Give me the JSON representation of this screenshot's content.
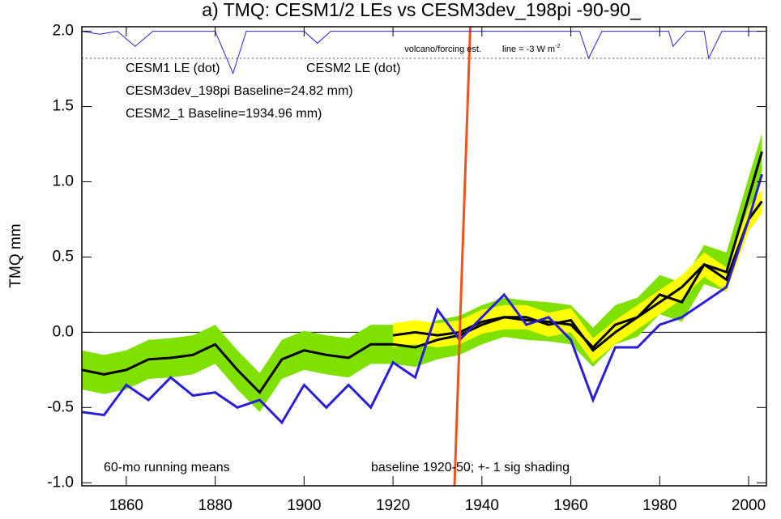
{
  "chart_data": {
    "type": "line",
    "title": "a) TMQ: CESM1/2 LEs vs CESM3dev_198pi -90-90_",
    "ylabel": "TMQ mm",
    "xlim": [
      1850,
      2004
    ],
    "ylim": [
      -1.02,
      2.03
    ],
    "xticks": [
      1860,
      1880,
      1900,
      1920,
      1940,
      1960,
      1980,
      2000
    ],
    "yticks": [
      {
        "value": -1,
        "label": "-1.0"
      },
      {
        "value": -0.5,
        "label": "-0.5"
      },
      {
        "value": 0,
        "label": "0.0"
      },
      0.5,
      {
        "value": 1,
        "label": "1.0"
      },
      1.5,
      {
        "value": 2,
        "label": "2.0"
      }
    ],
    "annotations": [
      "volcano/forcing est.",
      "line = -3 W m",
      "-2",
      "60-mo running means",
      "baseline 1920-50; +- 1 sig shading"
    ],
    "reference_line": 1.82,
    "series": [
      {
        "name": "CESM2 LE (dot)",
        "kind": "band",
        "color": "#80e000",
        "line_color": "#000000",
        "x": [
          1850,
          1855,
          1860,
          1865,
          1870,
          1875,
          1880,
          1885,
          1890,
          1895,
          1900,
          1905,
          1910,
          1915,
          1920,
          1925,
          1930,
          1935,
          1940,
          1945,
          1950,
          1955,
          1960,
          1965,
          1970,
          1975,
          1980,
          1985,
          1990,
          1995,
          2000,
          2003
        ],
        "values": [
          -0.25,
          -0.28,
          -0.25,
          -0.18,
          -0.17,
          -0.15,
          -0.08,
          -0.25,
          -0.4,
          -0.18,
          -0.12,
          -0.15,
          -0.17,
          -0.08,
          -0.08,
          -0.1,
          -0.05,
          -0.02,
          0.05,
          0.1,
          0.08,
          0.07,
          0.05,
          -0.1,
          0.05,
          0.1,
          0.25,
          0.2,
          0.45,
          0.4,
          0.9,
          1.2
        ],
        "upper": [
          -0.12,
          -0.15,
          -0.12,
          -0.05,
          -0.04,
          -0.02,
          0.05,
          -0.12,
          -0.27,
          -0.05,
          0.01,
          -0.02,
          -0.04,
          0.05,
          0.05,
          0.03,
          0.08,
          0.11,
          0.18,
          0.23,
          0.21,
          0.2,
          0.18,
          0.03,
          0.18,
          0.23,
          0.38,
          0.33,
          0.58,
          0.53,
          1.03,
          1.32
        ],
        "lower": [
          -0.38,
          -0.41,
          -0.38,
          -0.31,
          -0.3,
          -0.28,
          -0.21,
          -0.38,
          -0.53,
          -0.31,
          -0.25,
          -0.28,
          -0.3,
          -0.21,
          -0.21,
          -0.23,
          -0.18,
          -0.15,
          -0.08,
          -0.03,
          -0.05,
          -0.06,
          -0.08,
          -0.23,
          -0.08,
          -0.03,
          0.12,
          0.07,
          0.32,
          0.27,
          0.77,
          1.07
        ]
      },
      {
        "name": "CESM1 LE (dot)",
        "kind": "band",
        "color": "#ffff00",
        "line_color": "#000000",
        "x": [
          1920,
          1925,
          1930,
          1935,
          1940,
          1945,
          1950,
          1955,
          1960,
          1965,
          1970,
          1975,
          1980,
          1985,
          1990,
          1995,
          2000,
          2003
        ],
        "values": [
          -0.02,
          0.0,
          -0.02,
          0.0,
          0.07,
          0.1,
          0.1,
          0.05,
          0.08,
          -0.12,
          0.0,
          0.1,
          0.2,
          0.3,
          0.45,
          0.35,
          0.75,
          0.87
        ],
        "upper": [
          0.06,
          0.08,
          0.06,
          0.08,
          0.15,
          0.18,
          0.18,
          0.13,
          0.16,
          -0.04,
          0.08,
          0.18,
          0.28,
          0.38,
          0.53,
          0.43,
          0.83,
          0.95
        ],
        "lower": [
          -0.1,
          -0.08,
          -0.1,
          -0.08,
          -0.01,
          0.02,
          0.02,
          -0.03,
          0.0,
          -0.2,
          -0.08,
          0.02,
          0.12,
          0.22,
          0.37,
          0.27,
          0.67,
          0.79
        ]
      },
      {
        "name": "CESM2_1 Baseline=1934.96 mm)",
        "kind": "line",
        "color": "#2a1fd6",
        "x": [
          1850,
          1855,
          1860,
          1865,
          1870,
          1875,
          1880,
          1885,
          1890,
          1895,
          1900,
          1905,
          1910,
          1915,
          1920,
          1925,
          1930,
          1935,
          1940,
          1945,
          1950,
          1955,
          1960,
          1965,
          1970,
          1975,
          1980,
          1985,
          1990,
          1995,
          2000,
          2003
        ],
        "values": [
          -0.53,
          -0.55,
          -0.35,
          -0.45,
          -0.3,
          -0.42,
          -0.4,
          -0.5,
          -0.45,
          -0.6,
          -0.35,
          -0.5,
          -0.35,
          -0.5,
          -0.2,
          -0.3,
          0.15,
          -0.05,
          0.1,
          0.25,
          0.05,
          0.1,
          -0.05,
          -0.45,
          -0.1,
          -0.1,
          0.05,
          0.1,
          0.2,
          0.3,
          0.75,
          1.05
        ]
      },
      {
        "name": "CESM3dev_198pi Baseline=24.82 mm)",
        "kind": "line",
        "color": "#f0541c",
        "x": [
          1933.8,
          1937.4
        ],
        "values": [
          -1.05,
          2.05
        ]
      },
      {
        "kind": "volcano",
        "color": "#2a1fd6",
        "x": [
          1850,
          1854,
          1858,
          1862,
          1866,
          1880,
          1884,
          1887,
          1900,
          1903,
          1906,
          1962,
          1964,
          1967,
          1982,
          1983,
          1986,
          1990,
          1991,
          1994,
          2003
        ],
        "values": [
          2.0,
          1.98,
          2.0,
          1.9,
          2.0,
          2.0,
          1.72,
          2.0,
          2.0,
          1.92,
          2.0,
          2.0,
          1.82,
          2.0,
          2.0,
          1.9,
          2.0,
          2.0,
          1.82,
          2.0,
          2.0
        ]
      }
    ]
  }
}
